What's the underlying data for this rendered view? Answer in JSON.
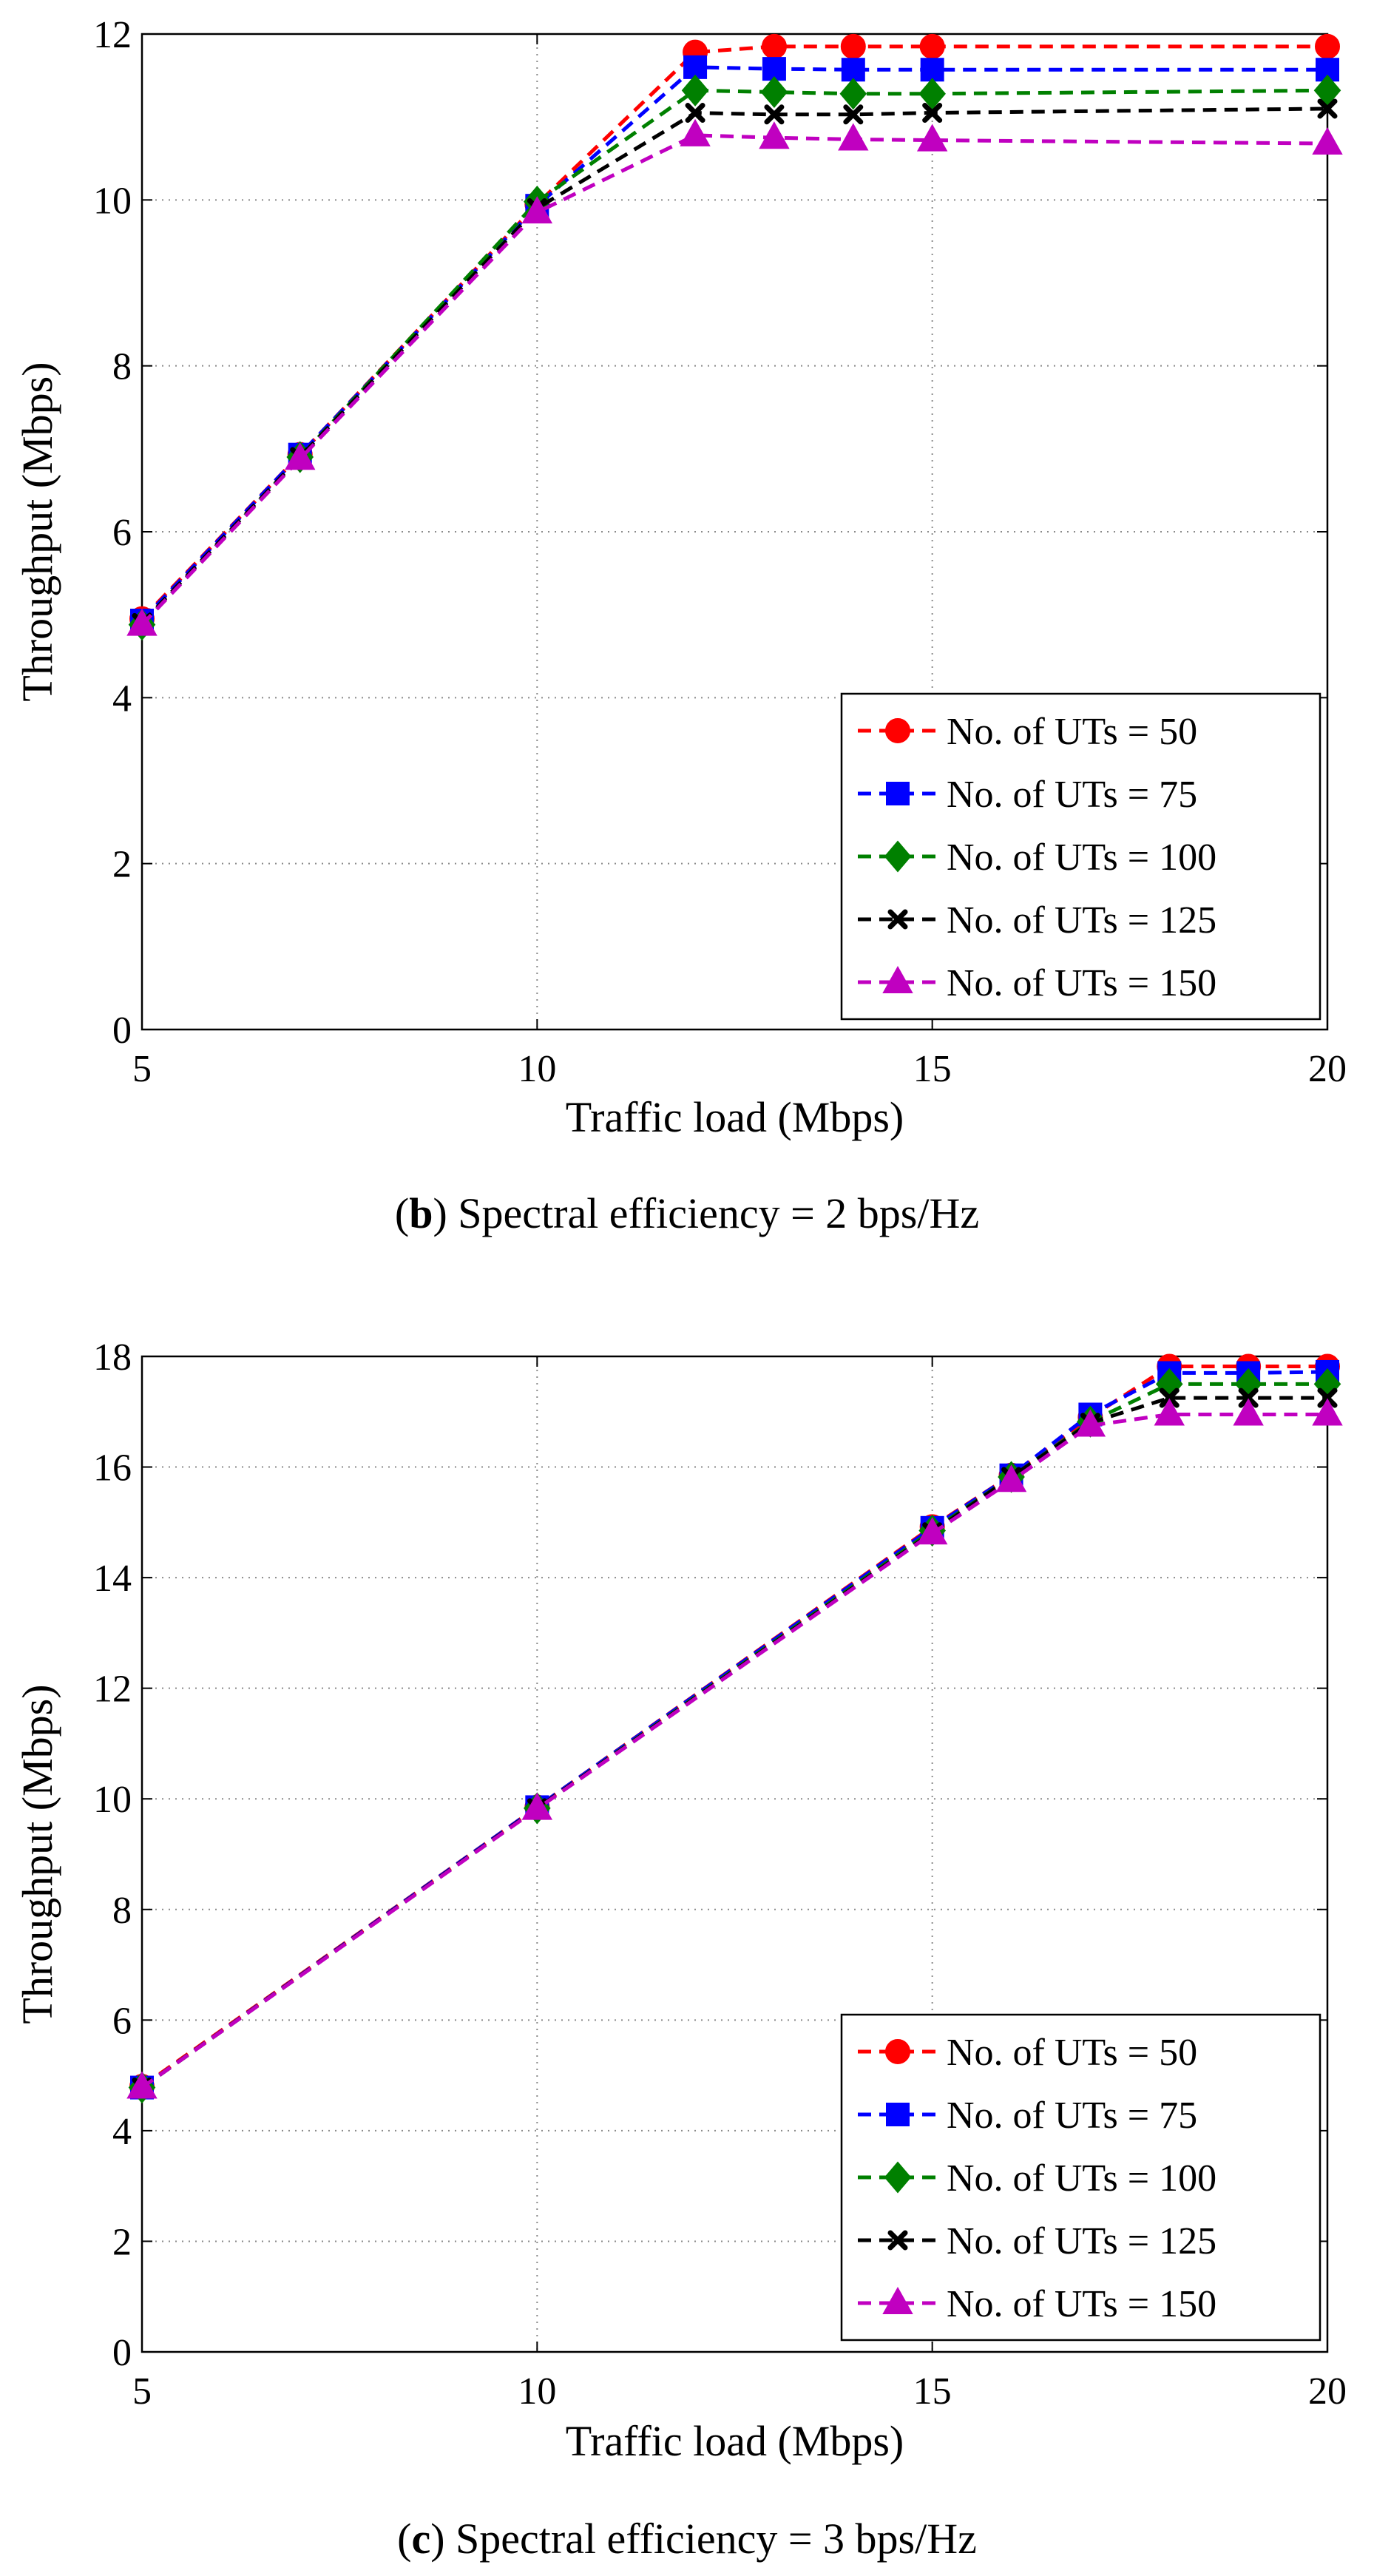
{
  "series_colors": [
    "#ff0000",
    "#0000ff",
    "#008000",
    "#000000",
    "#c000c0"
  ],
  "series_markers": [
    "circle-marker",
    "square-marker",
    "diamond-marker",
    "x-marker",
    "triangle-marker"
  ],
  "chart_data": [
    {
      "type": "line",
      "caption_letter": "b",
      "caption_text": "Spectral efficiency = 2 bps/Hz",
      "xlabel": "Traffic load (Mbps)",
      "ylabel": "Throughput (Mbps)",
      "xlim": [
        5,
        20
      ],
      "ylim": [
        0,
        12
      ],
      "xticks": [
        5,
        10,
        15,
        20
      ],
      "yticks": [
        0,
        2,
        4,
        6,
        8,
        10,
        12
      ],
      "grid": true,
      "legend_position": "bottom-right",
      "x": [
        5,
        7,
        10,
        12,
        13,
        14,
        15,
        20
      ],
      "series": [
        {
          "name": "No. of UTs = 50",
          "values": [
            4.95,
            6.93,
            9.95,
            11.78,
            11.85,
            11.85,
            11.85,
            11.85
          ]
        },
        {
          "name": "No. of UTs = 75",
          "values": [
            4.93,
            6.93,
            9.93,
            11.6,
            11.58,
            11.57,
            11.57,
            11.57
          ]
        },
        {
          "name": "No. of UTs = 100",
          "values": [
            4.88,
            6.9,
            9.98,
            11.32,
            11.3,
            11.28,
            11.28,
            11.32
          ]
        },
        {
          "name": "No. of UTs = 125",
          "values": [
            4.9,
            6.9,
            9.9,
            11.05,
            11.03,
            11.03,
            11.05,
            11.1
          ]
        },
        {
          "name": "No. of UTs = 150",
          "values": [
            4.88,
            6.88,
            9.85,
            10.78,
            10.75,
            10.73,
            10.72,
            10.68
          ]
        }
      ]
    },
    {
      "type": "line",
      "caption_letter": "c",
      "caption_text": "Spectral efficiency = 3 bps/Hz",
      "xlabel": "Traffic load (Mbps)",
      "ylabel": "Throughput (Mbps)",
      "xlim": [
        5,
        20
      ],
      "ylim": [
        0,
        18
      ],
      "xticks": [
        5,
        10,
        15,
        20
      ],
      "yticks": [
        0,
        2,
        4,
        6,
        8,
        10,
        12,
        14,
        16,
        18
      ],
      "grid": true,
      "legend_position": "bottom-right",
      "x": [
        5,
        10,
        15,
        16,
        17,
        18,
        19,
        20
      ],
      "series": [
        {
          "name": "No. of UTs = 50",
          "values": [
            4.8,
            9.85,
            14.92,
            15.85,
            16.9,
            17.82,
            17.82,
            17.82
          ]
        },
        {
          "name": "No. of UTs = 75",
          "values": [
            4.78,
            9.85,
            14.9,
            15.85,
            16.95,
            17.7,
            17.7,
            17.72
          ]
        },
        {
          "name": "No. of UTs = 100",
          "values": [
            4.78,
            9.83,
            14.85,
            15.82,
            16.82,
            17.5,
            17.5,
            17.5
          ]
        },
        {
          "name": "No. of UTs = 125",
          "values": [
            4.78,
            9.83,
            14.82,
            15.82,
            16.8,
            17.25,
            17.25,
            17.25
          ]
        },
        {
          "name": "No. of UTs = 150",
          "values": [
            4.78,
            9.82,
            14.8,
            15.75,
            16.75,
            16.95,
            16.95,
            16.95
          ]
        }
      ]
    }
  ]
}
